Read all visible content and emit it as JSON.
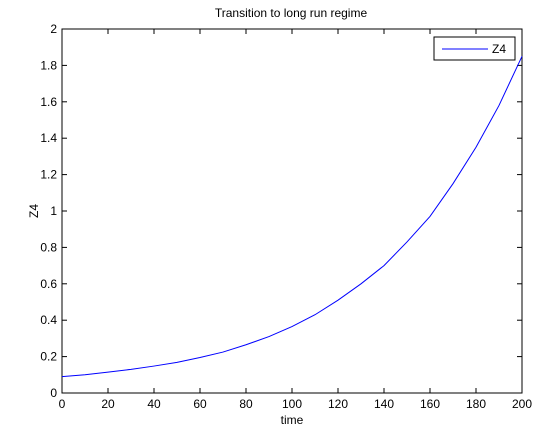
{
  "chart_data": {
    "type": "line",
    "title": "Transition to long run regime",
    "xlabel": "time",
    "ylabel": "Z4",
    "xlim": [
      0,
      200
    ],
    "ylim": [
      0,
      2
    ],
    "xticks": [
      0,
      20,
      40,
      60,
      80,
      100,
      120,
      140,
      160,
      180,
      200
    ],
    "yticks": [
      0,
      0.2,
      0.4,
      0.6,
      0.8,
      1,
      1.2,
      1.4,
      1.6,
      1.8,
      2
    ],
    "xtick_labels": [
      "0",
      "20",
      "40",
      "60",
      "80",
      "100",
      "120",
      "140",
      "160",
      "180",
      "200"
    ],
    "ytick_labels": [
      "0",
      "0.2",
      "0.4",
      "0.6",
      "0.8",
      "1",
      "1.2",
      "1.4",
      "1.6",
      "1.8",
      "2"
    ],
    "grid": false,
    "legend": {
      "position": "top-right",
      "entries": [
        "Z4"
      ]
    },
    "series": [
      {
        "name": "Z4",
        "color": "#0000ff",
        "x": [
          0,
          10,
          20,
          30,
          40,
          50,
          60,
          70,
          80,
          90,
          100,
          110,
          120,
          130,
          140,
          150,
          160,
          170,
          180,
          190,
          200
        ],
        "y": [
          0.09,
          0.1,
          0.115,
          0.13,
          0.148,
          0.168,
          0.195,
          0.225,
          0.265,
          0.31,
          0.365,
          0.43,
          0.51,
          0.6,
          0.7,
          0.83,
          0.97,
          1.15,
          1.35,
          1.58,
          1.85
        ]
      }
    ]
  }
}
